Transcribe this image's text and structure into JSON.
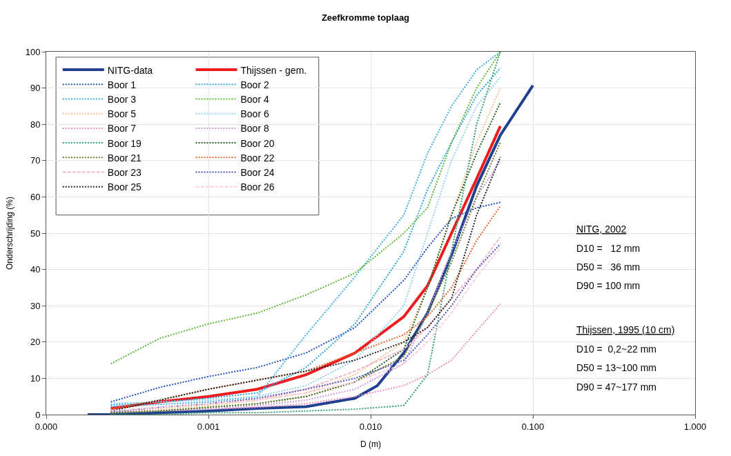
{
  "chart_data": {
    "type": "line",
    "title": "Zeefkromme toplaag",
    "xlabel": "D (m)",
    "ylabel": "Onderschrijding (%)",
    "log": "x",
    "xlim": [
      0.0001,
      1
    ],
    "xticks": [
      {
        "value": 0.0001,
        "label": "0.000"
      },
      {
        "value": 0.001,
        "label": "0.001"
      },
      {
        "value": 0.01,
        "label": "0.010"
      },
      {
        "value": 0.1,
        "label": "0.100"
      },
      {
        "value": 1,
        "label": "1.000"
      }
    ],
    "ylim": [
      0,
      100
    ],
    "yticks": [
      0,
      10,
      20,
      30,
      40,
      50,
      60,
      70,
      80,
      90,
      100
    ],
    "grid": true,
    "legend": "top left",
    "marker": "none",
    "x": [
      0.00025,
      0.0005,
      0.001,
      0.002,
      0.004,
      0.008,
      0.016,
      0.0224,
      0.0315,
      0.045,
      0.063
    ],
    "series": [
      {
        "name": "NITG-data",
        "color": "#1f3f8f",
        "line_style": "solid",
        "x": [
          0.00018,
          0.00025,
          0.001,
          0.002,
          0.004,
          0.008,
          0.011,
          0.016,
          0.0224,
          0.0315,
          0.045,
          0.063,
          0.1
        ],
        "values": [
          0,
          0,
          1,
          1.7,
          2.2,
          4.5,
          8,
          17,
          28,
          44,
          63,
          77,
          90.7
        ]
      },
      {
        "name": "Thijssen - gem.",
        "color": "#ee1c1c",
        "line_style": "solid",
        "values": [
          1.7,
          3.5,
          5,
          7,
          11,
          17,
          27,
          35.5,
          50,
          65,
          79.5
        ]
      },
      {
        "name": "Boor 1",
        "color": "#1f4fbf",
        "line_style": "dotted",
        "values": [
          3.5,
          7.5,
          10.5,
          13,
          17,
          24,
          37,
          46,
          54,
          57,
          58.5
        ]
      },
      {
        "name": "Boor 2",
        "color": "#29a3e0",
        "line_style": "dotted",
        "values": [
          2.7,
          3.5,
          4.5,
          6,
          13,
          25,
          45,
          62,
          75,
          88,
          95.5
        ]
      },
      {
        "name": "Boor 3",
        "color": "#3aaee8",
        "line_style": "dotted",
        "values": [
          2.3,
          2.8,
          3.5,
          5,
          22,
          38,
          55,
          72,
          85,
          95,
          100
        ]
      },
      {
        "name": "Boor 4",
        "color": "#5ab82e",
        "line_style": "dotted",
        "values": [
          14,
          21,
          25,
          28,
          33,
          39,
          50,
          57,
          75,
          90,
          100
        ]
      },
      {
        "name": "Boor 5",
        "color": "#f5c28a",
        "line_style": "dotted",
        "values": [
          1,
          1.5,
          2.5,
          4,
          6,
          11,
          20,
          35,
          55,
          75,
          90
        ]
      },
      {
        "name": "Boor 6",
        "color": "#8fd0f0",
        "line_style": "dotted",
        "values": [
          3.1,
          3.5,
          4,
          5,
          8,
          15,
          30,
          50,
          70,
          85,
          93
        ]
      },
      {
        "name": "Boor 7",
        "color": "#f08cc0",
        "line_style": "dotted",
        "values": [
          0.5,
          1,
          1.5,
          2,
          3,
          5,
          8,
          11,
          15,
          23,
          30.5
        ]
      },
      {
        "name": "Boor 8",
        "color": "#c89be0",
        "line_style": "dotted",
        "values": [
          0.5,
          1,
          1.5,
          2.5,
          4,
          7,
          14,
          28,
          45,
          60,
          70
        ]
      },
      {
        "name": "Boor 19",
        "color": "#2e9e6a",
        "line_style": "dotted",
        "values": [
          0,
          0,
          0.5,
          0.5,
          1,
          1.5,
          2.5,
          11,
          45,
          80,
          100
        ]
      },
      {
        "name": "Boor 20",
        "color": "#1d5c1d",
        "line_style": "dotted",
        "values": [
          0.5,
          1,
          2,
          3,
          5,
          9,
          18,
          35,
          55,
          72,
          86
        ]
      },
      {
        "name": "Boor 21",
        "color": "#6b7a2a",
        "line_style": "dotted",
        "values": [
          0.5,
          1,
          2,
          3,
          5,
          9,
          16,
          28,
          42,
          60,
          75
        ]
      },
      {
        "name": "Boor 22",
        "color": "#e8642a",
        "line_style": "dotted",
        "values": [
          1.5,
          4,
          7,
          9.5,
          12,
          17,
          22,
          27,
          35,
          48,
          57.5
        ]
      },
      {
        "name": "Boor 23",
        "color": "#f0b8c8",
        "line_style": "dashed",
        "values": [
          1,
          2,
          3,
          4,
          7,
          12,
          18,
          24,
          32,
          40,
          49
        ]
      },
      {
        "name": "Boor 24",
        "color": "#5050c0",
        "line_style": "dotted",
        "values": [
          0.75,
          2,
          3,
          4.5,
          7,
          10,
          15,
          22,
          30,
          40,
          47
        ]
      },
      {
        "name": "Boor 25",
        "color": "#202020",
        "line_style": "dotted",
        "values": [
          1,
          4,
          7,
          9.5,
          12,
          15,
          20,
          24,
          32,
          55,
          71
        ]
      },
      {
        "name": "Boor 26",
        "color": "#f8d0e0",
        "line_style": "dashed",
        "values": [
          1,
          2,
          3,
          4,
          6,
          9,
          14,
          20,
          28,
          38,
          46
        ]
      }
    ],
    "annotations": [
      "NITG, 2002",
      "D10 =   12 mm",
      "D50 =   36 mm",
      "D90 = 100 mm",
      "Thijssen, 1995 (10 cm)",
      "D10 =  0,2~22 mm",
      "D50 = 13~100 mm",
      "D90 = 47~177 mm"
    ]
  }
}
